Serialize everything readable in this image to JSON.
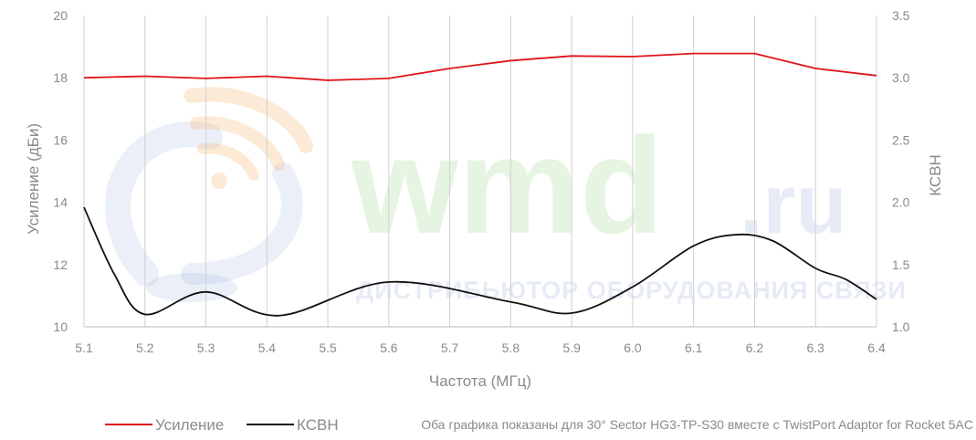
{
  "watermark": {
    "brand": "wmd",
    "tld": ".ru",
    "tagline": "ДИСТРИБЬЮТОР ОБОРУДОВАНИЯ СВЯЗИ",
    "logo_icon": "wifi-signal-icon"
  },
  "chart_data": {
    "type": "line",
    "x": [
      5.1,
      5.2,
      5.3,
      5.4,
      5.5,
      5.6,
      5.7,
      5.8,
      5.9,
      6.0,
      6.1,
      6.2,
      6.3,
      6.4
    ],
    "x_ticks": [
      "5.1",
      "5.2",
      "5.3",
      "5.4",
      "5.5",
      "5.6",
      "5.7",
      "5.8",
      "5.9",
      "6.0",
      "6.1",
      "6.2",
      "6.3",
      "6.4"
    ],
    "xlim": [
      5.1,
      6.4
    ],
    "xlabel": "Частота (МГц)",
    "ylabel_left": "Усиление (дБи)",
    "ylabel_right": "КСВН",
    "ylim_left": [
      10,
      20
    ],
    "ylim_right": [
      1.0,
      3.5
    ],
    "y_ticks_left": [
      "10",
      "12",
      "14",
      "16",
      "18",
      "20"
    ],
    "y_ticks_right": [
      "1.0",
      "1.5",
      "2.0",
      "2.5",
      "3.0",
      "3.5"
    ],
    "grid": "vertical",
    "legend_position": "bottom-left",
    "series": [
      {
        "name": "Усиление",
        "axis": "left",
        "color": "#e0141a",
        "smooth": false,
        "points": [
          [
            5.1,
            18.0
          ],
          [
            5.2,
            18.05
          ],
          [
            5.3,
            17.98
          ],
          [
            5.4,
            18.05
          ],
          [
            5.5,
            17.92
          ],
          [
            5.6,
            17.98
          ],
          [
            5.7,
            18.3
          ],
          [
            5.8,
            18.55
          ],
          [
            5.9,
            18.7
          ],
          [
            6.0,
            18.68
          ],
          [
            6.1,
            18.78
          ],
          [
            6.2,
            18.78
          ],
          [
            6.3,
            18.3
          ],
          [
            6.4,
            18.07
          ]
        ]
      },
      {
        "name": "КСВН",
        "axis": "right",
        "color": "#111111",
        "smooth": true,
        "points": [
          [
            5.1,
            1.96
          ],
          [
            5.15,
            1.42
          ],
          [
            5.2,
            1.1
          ],
          [
            5.3,
            1.28
          ],
          [
            5.42,
            1.09
          ],
          [
            5.6,
            1.36
          ],
          [
            5.8,
            1.2
          ],
          [
            5.9,
            1.11
          ],
          [
            6.0,
            1.32
          ],
          [
            6.1,
            1.65
          ],
          [
            6.17,
            1.74
          ],
          [
            6.23,
            1.69
          ],
          [
            6.3,
            1.47
          ],
          [
            6.35,
            1.38
          ],
          [
            6.4,
            1.22
          ]
        ]
      }
    ]
  },
  "note": "Оба графика показаны для 30° Sector HG3-TP-S30 вместе с TwistPort Adaptor for Rocket 5AC"
}
